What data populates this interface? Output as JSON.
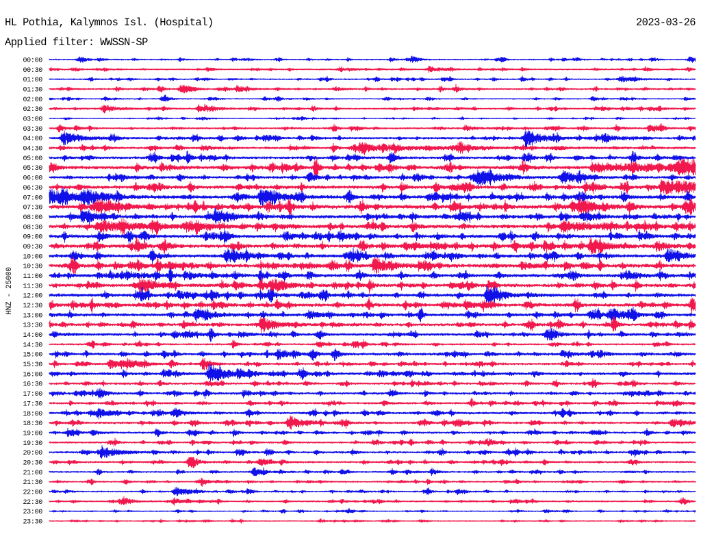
{
  "chart_data": {
    "type": "line",
    "title": "HL Pothia, Kalymnos Isl. (Hospital)",
    "date": "2023-03-26",
    "subtitle": "Applied filter: WWSSN-SP",
    "ylabel": "HNZ - 25000",
    "xlabel": "",
    "xlim": [
      0,
      30
    ],
    "grid": false,
    "colors": [
      "#1010e8",
      "#f0184c"
    ],
    "rows": [
      {
        "label": "00:00",
        "noise": 0.07,
        "events": [
          {
            "min": 1.4,
            "amp": 0.25,
            "dur": 0.3
          },
          {
            "min": 8.5,
            "amp": 0.15,
            "dur": 0.3
          },
          {
            "min": 16.8,
            "amp": 0.2,
            "dur": 0.3
          },
          {
            "min": 29.7,
            "amp": 0.25,
            "dur": 0.3
          }
        ]
      },
      {
        "label": "00:30",
        "noise": 0.07,
        "events": [
          {
            "min": 17.6,
            "amp": 0.3,
            "dur": 0.5
          },
          {
            "min": 2.2,
            "amp": 0.12,
            "dur": 0.3
          }
        ]
      },
      {
        "label": "01:00",
        "noise": 0.07,
        "events": [
          {
            "min": 26.5,
            "amp": 0.35,
            "dur": 0.6
          }
        ]
      },
      {
        "label": "01:30",
        "noise": 0.09,
        "events": [
          {
            "min": 6.1,
            "amp": 0.35,
            "dur": 0.4
          },
          {
            "min": 8.7,
            "amp": 0.35,
            "dur": 0.4
          },
          {
            "min": 13.3,
            "amp": 0.2,
            "dur": 0.3
          },
          {
            "min": 18.8,
            "amp": 0.25,
            "dur": 0.3
          }
        ]
      },
      {
        "label": "02:00",
        "noise": 0.06,
        "events": [
          {
            "min": 5.2,
            "amp": 0.2,
            "dur": 0.3
          },
          {
            "min": 25.2,
            "amp": 0.25,
            "dur": 0.3
          },
          {
            "min": 29.5,
            "amp": 0.15,
            "dur": 0.3
          }
        ]
      },
      {
        "label": "02:30",
        "noise": 0.09,
        "events": [
          {
            "min": 2.5,
            "amp": 0.45,
            "dur": 0.5
          },
          {
            "min": 7.2,
            "amp": 0.3,
            "dur": 0.5
          },
          {
            "min": 26.6,
            "amp": 0.2,
            "dur": 0.4
          }
        ]
      },
      {
        "label": "03:00",
        "noise": 0.05,
        "events": [
          {
            "min": 7.1,
            "amp": 0.2,
            "dur": 0.3
          }
        ]
      },
      {
        "label": "03:30",
        "noise": 0.1,
        "events": [
          {
            "min": 19.3,
            "amp": 0.3,
            "dur": 0.4
          },
          {
            "min": 28.2,
            "amp": 0.2,
            "dur": 0.3
          }
        ]
      },
      {
        "label": "04:00",
        "noise": 0.12,
        "events": [
          {
            "min": 0.6,
            "amp": 0.65,
            "dur": 0.8
          },
          {
            "min": 22.1,
            "amp": 0.7,
            "dur": 0.8
          },
          {
            "min": 25.8,
            "amp": 0.3,
            "dur": 0.5
          }
        ]
      },
      {
        "label": "04:30",
        "noise": 0.12,
        "events": [
          {
            "min": 14.2,
            "amp": 0.3,
            "dur": 4.0
          },
          {
            "min": 7.1,
            "amp": 0.25,
            "dur": 0.5
          }
        ]
      },
      {
        "label": "05:00",
        "noise": 0.14,
        "events": [
          {
            "min": 1.5,
            "amp": 0.2,
            "dur": 0.3
          },
          {
            "min": 29.0,
            "amp": 0.2,
            "dur": 0.3
          }
        ]
      },
      {
        "label": "05:30",
        "noise": 0.18,
        "events": [
          {
            "min": 25.4,
            "amp": 0.35,
            "dur": 5.0
          },
          {
            "min": 29.3,
            "amp": 0.75,
            "dur": 0.6
          },
          {
            "min": 5.5,
            "amp": 0.25,
            "dur": 0.4
          }
        ]
      },
      {
        "label": "06:00",
        "noise": 0.14,
        "events": [
          {
            "min": 19.9,
            "amp": 1.0,
            "dur": 0.8
          },
          {
            "min": 23.8,
            "amp": 0.75,
            "dur": 0.6
          }
        ]
      },
      {
        "label": "06:30",
        "noise": 0.18,
        "events": [
          {
            "min": 28.4,
            "amp": 0.6,
            "dur": 6.0
          }
        ]
      },
      {
        "label": "07:00",
        "noise": 0.18,
        "events": [
          {
            "min": 0.0,
            "amp": 0.7,
            "dur": 1.2
          },
          {
            "min": 1.5,
            "amp": 0.85,
            "dur": 0.8
          },
          {
            "min": 8.7,
            "amp": 0.4,
            "dur": 0.4
          },
          {
            "min": 9.8,
            "amp": 0.9,
            "dur": 0.8
          }
        ]
      },
      {
        "label": "07:30",
        "noise": 0.22,
        "events": [
          {
            "min": 2.2,
            "amp": 0.55,
            "dur": 0.8
          },
          {
            "min": 24.6,
            "amp": 0.85,
            "dur": 0.7
          },
          {
            "min": 29.5,
            "amp": 0.55,
            "dur": 0.5
          }
        ]
      },
      {
        "label": "08:00",
        "noise": 0.18,
        "events": [
          {
            "min": 1.5,
            "amp": 0.55,
            "dur": 0.6
          },
          {
            "min": 7.7,
            "amp": 0.85,
            "dur": 0.6
          },
          {
            "min": 24.7,
            "amp": 0.35,
            "dur": 0.5
          }
        ]
      },
      {
        "label": "08:30",
        "noise": 0.2,
        "events": [
          {
            "min": 2.2,
            "amp": 0.45,
            "dur": 2.5
          },
          {
            "min": 23.8,
            "amp": 0.55,
            "dur": 1.2
          }
        ]
      },
      {
        "label": "09:00",
        "noise": 0.18,
        "events": [
          {
            "min": 2.3,
            "amp": 0.3,
            "dur": 0.3
          },
          {
            "min": 11.0,
            "amp": 0.25,
            "dur": 0.4
          }
        ]
      },
      {
        "label": "09:30",
        "noise": 0.2,
        "events": [
          {
            "min": 25.1,
            "amp": 0.85,
            "dur": 0.6
          },
          {
            "min": 28.2,
            "amp": 0.45,
            "dur": 0.5
          },
          {
            "min": 16.5,
            "amp": 0.3,
            "dur": 0.4
          }
        ]
      },
      {
        "label": "10:00",
        "noise": 0.18,
        "events": [
          {
            "min": 8.2,
            "amp": 0.75,
            "dur": 0.6
          },
          {
            "min": 28.7,
            "amp": 0.75,
            "dur": 0.6
          }
        ]
      },
      {
        "label": "10:30",
        "noise": 0.2,
        "events": [
          {
            "min": 15.1,
            "amp": 0.75,
            "dur": 0.7
          },
          {
            "min": 5.5,
            "amp": 0.35,
            "dur": 0.5
          },
          {
            "min": 11.7,
            "amp": 0.3,
            "dur": 0.4
          },
          {
            "min": 21.9,
            "amp": 0.35,
            "dur": 0.5
          }
        ]
      },
      {
        "label": "11:00",
        "noise": 0.18,
        "events": [
          {
            "min": 3.6,
            "amp": 0.45,
            "dur": 0.5
          },
          {
            "min": 6.5,
            "amp": 0.3,
            "dur": 0.4
          },
          {
            "min": 26.8,
            "amp": 0.45,
            "dur": 0.5
          }
        ]
      },
      {
        "label": "11:30",
        "noise": 0.18,
        "events": [
          {
            "min": 4.2,
            "amp": 0.75,
            "dur": 0.7
          },
          {
            "min": 10.3,
            "amp": 0.75,
            "dur": 0.7
          }
        ]
      },
      {
        "label": "12:00",
        "noise": 0.17,
        "events": [
          {
            "min": 20.3,
            "amp": 0.75,
            "dur": 0.7
          },
          {
            "min": 6.0,
            "amp": 0.35,
            "dur": 0.4
          },
          {
            "min": 11.7,
            "amp": 0.3,
            "dur": 0.4
          }
        ]
      },
      {
        "label": "12:30",
        "noise": 0.18,
        "events": [
          {
            "min": 19.3,
            "amp": 0.45,
            "dur": 0.5
          },
          {
            "min": 29.8,
            "amp": 0.6,
            "dur": 0.5
          }
        ]
      },
      {
        "label": "13:00",
        "noise": 0.16,
        "events": [
          {
            "min": 6.8,
            "amp": 0.65,
            "dur": 0.7
          },
          {
            "min": 12.0,
            "amp": 0.45,
            "dur": 0.5
          },
          {
            "min": 26.0,
            "amp": 0.65,
            "dur": 0.6
          }
        ]
      },
      {
        "label": "13:30",
        "noise": 0.15,
        "events": [
          {
            "min": 9.8,
            "amp": 0.8,
            "dur": 0.7
          }
        ]
      },
      {
        "label": "14:00",
        "noise": 0.14,
        "events": [
          {
            "min": 8.8,
            "amp": 0.35,
            "dur": 0.4
          },
          {
            "min": 23.1,
            "amp": 0.35,
            "dur": 0.5
          }
        ]
      },
      {
        "label": "14:30",
        "noise": 0.1,
        "events": [
          {
            "min": 4.0,
            "amp": 0.15,
            "dur": 0.3
          }
        ]
      },
      {
        "label": "15:00",
        "noise": 0.14,
        "events": [
          {
            "min": 10.6,
            "amp": 0.35,
            "dur": 0.4
          },
          {
            "min": 20.3,
            "amp": 0.3,
            "dur": 0.3
          },
          {
            "min": 23.8,
            "amp": 0.35,
            "dur": 0.5
          }
        ]
      },
      {
        "label": "15:30",
        "noise": 0.12,
        "events": [
          {
            "min": 2.8,
            "amp": 0.5,
            "dur": 0.4
          },
          {
            "min": 3.6,
            "amp": 0.5,
            "dur": 0.5
          },
          {
            "min": 7.1,
            "amp": 0.45,
            "dur": 0.4
          }
        ]
      },
      {
        "label": "16:00",
        "noise": 0.14,
        "events": [
          {
            "min": 7.4,
            "amp": 0.95,
            "dur": 0.8
          },
          {
            "min": 5.3,
            "amp": 0.4,
            "dur": 0.4
          },
          {
            "min": 15.3,
            "amp": 0.35,
            "dur": 0.4
          }
        ]
      },
      {
        "label": "16:30",
        "noise": 0.12,
        "events": [
          {
            "min": 20.0,
            "amp": 0.2,
            "dur": 0.3
          }
        ]
      },
      {
        "label": "17:00",
        "noise": 0.12,
        "events": [
          {
            "min": 2.2,
            "amp": 0.45,
            "dur": 0.4
          },
          {
            "min": 9.0,
            "amp": 0.35,
            "dur": 0.4
          }
        ]
      },
      {
        "label": "17:30",
        "noise": 0.11,
        "events": [
          {
            "min": 26.0,
            "amp": 0.2,
            "dur": 0.3
          }
        ]
      },
      {
        "label": "18:00",
        "noise": 0.12,
        "events": [
          {
            "min": 2.3,
            "amp": 0.45,
            "dur": 0.4
          },
          {
            "min": 5.7,
            "amp": 0.45,
            "dur": 0.4
          }
        ]
      },
      {
        "label": "18:30",
        "noise": 0.12,
        "events": [
          {
            "min": 11.1,
            "amp": 0.75,
            "dur": 0.7
          },
          {
            "min": 28.9,
            "amp": 0.45,
            "dur": 0.5
          }
        ]
      },
      {
        "label": "19:00",
        "noise": 0.11,
        "events": [
          {
            "min": 2.0,
            "amp": 0.3,
            "dur": 0.3
          }
        ]
      },
      {
        "label": "19:30",
        "noise": 0.1,
        "events": [
          {
            "min": 15.0,
            "amp": 0.2,
            "dur": 0.3
          }
        ]
      },
      {
        "label": "20:00",
        "noise": 0.11,
        "events": [
          {
            "min": 2.4,
            "amp": 0.65,
            "dur": 0.7
          }
        ]
      },
      {
        "label": "20:30",
        "noise": 0.1,
        "events": [
          {
            "min": 6.5,
            "amp": 0.45,
            "dur": 0.4
          }
        ]
      },
      {
        "label": "21:00",
        "noise": 0.09,
        "events": [
          {
            "min": 9.5,
            "amp": 0.4,
            "dur": 0.4
          }
        ]
      },
      {
        "label": "21:30",
        "noise": 0.08,
        "events": [
          {
            "min": 12.0,
            "amp": 0.15,
            "dur": 0.3
          }
        ]
      },
      {
        "label": "22:00",
        "noise": 0.08,
        "events": [
          {
            "min": 5.8,
            "amp": 0.45,
            "dur": 0.4
          }
        ]
      },
      {
        "label": "22:30",
        "noise": 0.08,
        "events": [
          {
            "min": 3.4,
            "amp": 0.45,
            "dur": 0.4
          },
          {
            "min": 5.8,
            "amp": 0.3,
            "dur": 0.3
          }
        ]
      },
      {
        "label": "23:00",
        "noise": 0.06,
        "events": [
          {
            "min": 23.0,
            "amp": 0.2,
            "dur": 0.3
          }
        ]
      },
      {
        "label": "23:30",
        "noise": 0.05,
        "events": [
          {
            "min": 26.5,
            "amp": 0.15,
            "dur": 0.3
          }
        ]
      }
    ]
  }
}
